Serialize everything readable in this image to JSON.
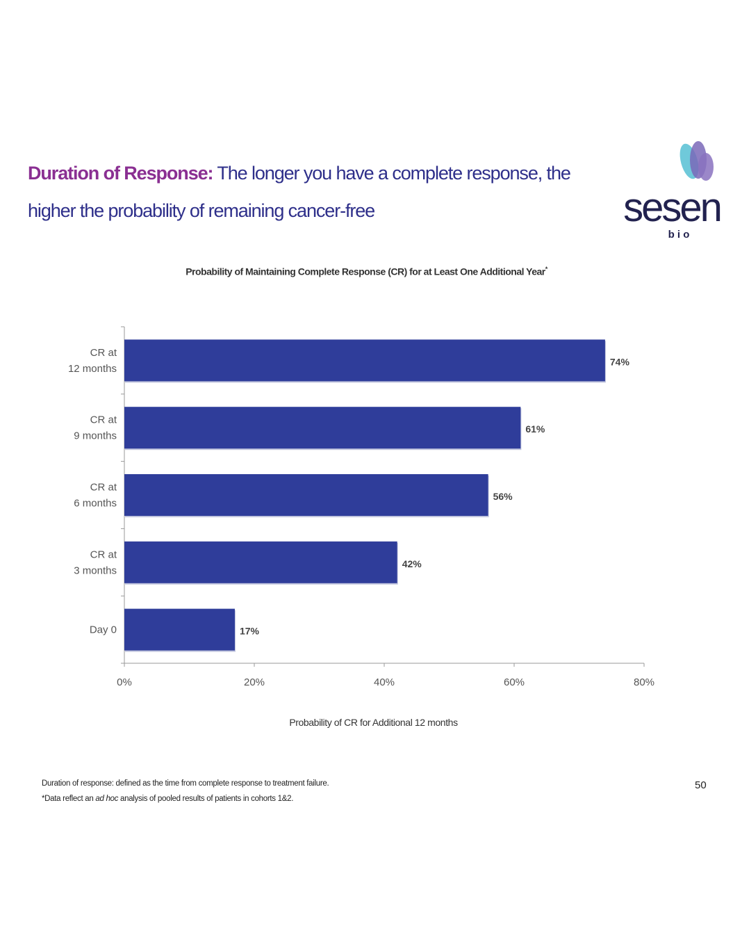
{
  "slide": {
    "title_bold": "Duration of Response:",
    "title_rest": " The longer you have a complete response, the higher the probability of remaining cancer-free",
    "logo_text": "sesen",
    "logo_sub": "b i o",
    "footnote_1": "Duration of response: defined as the time from complete response to treatment failure.",
    "footnote_2_pre": "*Data reflect an ",
    "footnote_2_italic": "ad hoc",
    "footnote_2_post": " analysis of pooled results of patients in cohorts 1&2.",
    "page_number": "50"
  },
  "chart_data": {
    "type": "bar",
    "orientation": "horizontal",
    "title": "Probability of Maintaining Complete Response (CR) for at Least One Additional Year",
    "title_superscript": "*",
    "xlabel": "Probability of CR for Additional 12 months",
    "ylabel": "",
    "categories": [
      [
        "CR at",
        "12 months"
      ],
      [
        "CR at",
        "9 months"
      ],
      [
        "CR at",
        "6 months"
      ],
      [
        "CR at",
        "3 months"
      ],
      [
        "Day 0"
      ]
    ],
    "values": [
      74,
      61,
      56,
      42,
      17
    ],
    "data_labels": [
      "74%",
      "61%",
      "56%",
      "42%",
      "17%"
    ],
    "xlim": [
      0,
      80
    ],
    "xticks": [
      0,
      20,
      40,
      60,
      80
    ],
    "xtick_labels": [
      "0%",
      "20%",
      "40%",
      "60%",
      "80%"
    ],
    "grid": false,
    "bar_color": "#2f3d9a"
  }
}
